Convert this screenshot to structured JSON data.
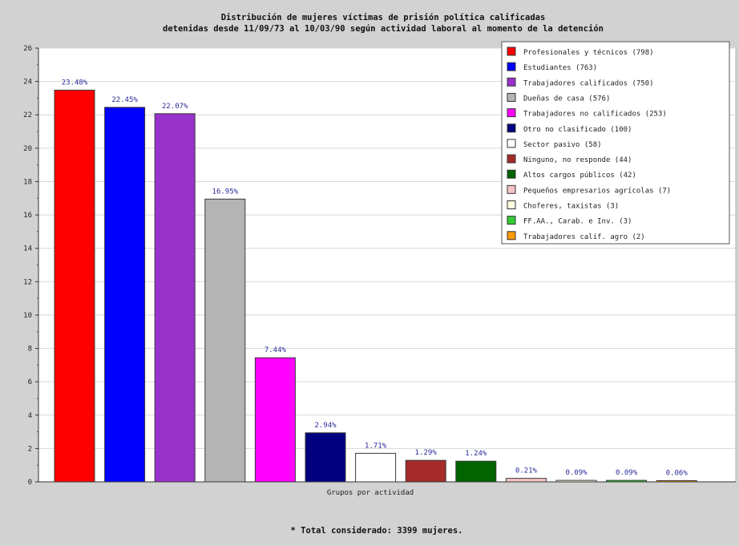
{
  "chart_data": {
    "type": "bar",
    "title_lines": [
      "Distribución de mujeres víctimas de prisión política calificadas",
      "detenidas desde 11/09/73 al 10/03/90 según actividad laboral al momento de la detención"
    ],
    "xlabel": "Grupos por actividad",
    "ylim": [
      0,
      26
    ],
    "yticks": [
      "0",
      "2",
      "4",
      "6",
      "8",
      "10",
      "12",
      "14",
      "16",
      "18",
      "20",
      "22",
      "24",
      "26"
    ],
    "grid": true,
    "legend_position": "top-right",
    "categories": [
      "Profesionales y técnicos (798)",
      "Estudiantes (763)",
      "Trabajadores calificados (750)",
      "Dueñas de casa (576)",
      "Trabajadores no calificados (253)",
      "Otro no clasificado (100)",
      "Sector pasivo (58)",
      "Ninguno, no responde (44)",
      "Altos cargos públicos (42)",
      "Pequeños empresarios agrícolas (7)",
      "Choferes, taxistas (3)",
      "FF.AA., Carab. e Inv. (3)",
      "Trabajadores calif. agro (2)"
    ],
    "values": [
      23.48,
      22.45,
      22.07,
      16.95,
      7.44,
      2.94,
      1.71,
      1.29,
      1.24,
      0.21,
      0.09,
      0.09,
      0.06
    ],
    "value_labels": [
      "23.48%",
      "22.45%",
      "22.07%",
      "16.95%",
      "7.44%",
      "2.94%",
      "1.71%",
      "1.29%",
      "1.24%",
      "0.21%",
      "0.09%",
      "0.09%",
      "0.06%"
    ],
    "colors": [
      "#ff0000",
      "#0000ff",
      "#9933cc",
      "#b4b4b4",
      "#ff00ff",
      "#000080",
      "#ffffff",
      "#a52a2a",
      "#006400",
      "#f4c4c4",
      "#ffffe0",
      "#33cc33",
      "#ff9900"
    ],
    "footer": "* Total considerado: 3399 mujeres."
  }
}
